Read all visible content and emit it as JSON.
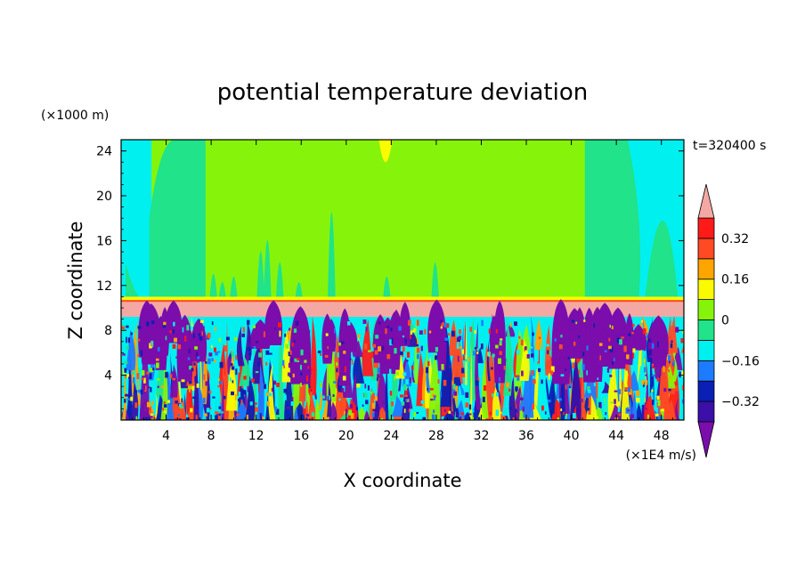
{
  "chart_data": {
    "type": "heatmap",
    "title": "potential temperature deviation",
    "xlabel": "X coordinate",
    "ylabel": "Z coordinate",
    "x_unit": "(×1E4 m/s)",
    "y_unit": "(×1000 m)",
    "time_label": "t=320400 s",
    "xlim": [
      0,
      50
    ],
    "ylim": [
      0,
      25
    ],
    "x_ticks": [
      4,
      8,
      12,
      16,
      20,
      24,
      28,
      32,
      36,
      40,
      44,
      48
    ],
    "y_ticks": [
      4,
      8,
      12,
      16,
      20,
      24
    ],
    "colorbar": {
      "levels": [
        -0.4,
        -0.32,
        -0.24,
        -0.16,
        -0.08,
        0,
        0.08,
        0.16,
        0.24,
        0.32,
        0.4
      ],
      "tick_labels": [
        "0.32",
        "0.16",
        "0",
        "−0.16",
        "−0.32"
      ],
      "tick_values": [
        0.32,
        0.16,
        0,
        -0.16,
        -0.32
      ],
      "colors": [
        "#7a0dac",
        "#3b0fa8",
        "#0a1fb4",
        "#1d7bff",
        "#00f0f0",
        "#20e38a",
        "#86f40a",
        "#fafa00",
        "#ffa500",
        "#ff4a24",
        "#ff1a1a",
        "#f4a8a4"
      ]
    }
  }
}
